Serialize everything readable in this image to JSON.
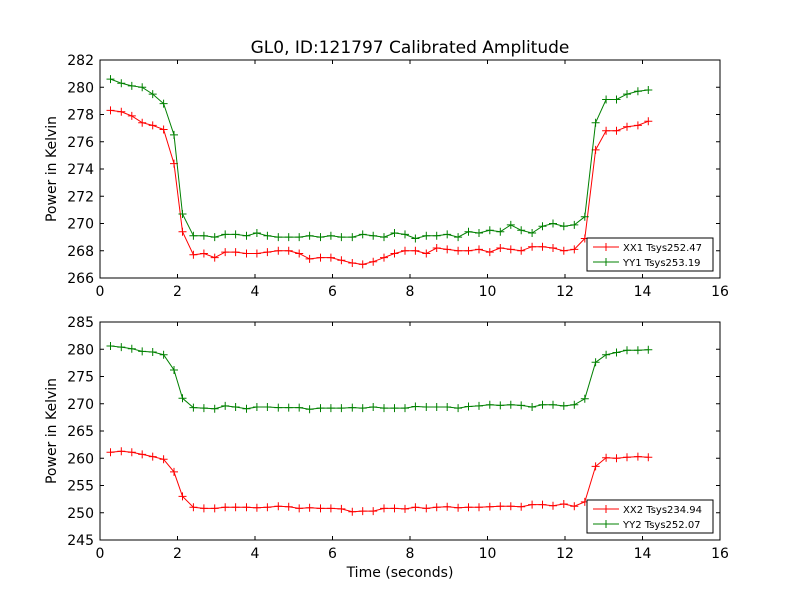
{
  "title": "GL0, ID:121797 Calibrated Amplitude",
  "colors": {
    "red": "#ff0000",
    "green": "#008000"
  },
  "chart_data": [
    {
      "type": "line",
      "panel": "top",
      "xlabel": "",
      "ylabel": "Power in Kelvin",
      "xlim": [
        0,
        16
      ],
      "ylim": [
        266,
        282
      ],
      "xticks": [
        0,
        2,
        4,
        6,
        8,
        10,
        12,
        14,
        16
      ],
      "yticks": [
        266,
        268,
        270,
        272,
        274,
        276,
        278,
        280,
        282
      ],
      "grid": false,
      "legend_position": "lower-right",
      "x": [
        0.27,
        0.55,
        0.82,
        1.09,
        1.36,
        1.64,
        1.91,
        2.13,
        2.41,
        2.68,
        2.96,
        3.23,
        3.5,
        3.78,
        4.05,
        4.32,
        4.6,
        4.87,
        5.14,
        5.41,
        5.69,
        5.96,
        6.23,
        6.51,
        6.78,
        7.05,
        7.33,
        7.6,
        7.87,
        8.14,
        8.42,
        8.69,
        8.96,
        9.24,
        9.51,
        9.78,
        10.06,
        10.33,
        10.6,
        10.87,
        11.15,
        11.42,
        11.69,
        11.97,
        12.24,
        12.51,
        12.79,
        13.06,
        13.33,
        13.6,
        13.88,
        14.15
      ],
      "series": [
        {
          "name": "XX1 Tsys252.47",
          "color": "#ff0000",
          "values": [
            278.3,
            278.2,
            277.9,
            277.4,
            277.2,
            276.9,
            274.4,
            269.4,
            267.7,
            267.8,
            267.5,
            267.9,
            267.9,
            267.8,
            267.8,
            267.9,
            268.0,
            268.0,
            267.8,
            267.4,
            267.5,
            267.5,
            267.3,
            267.1,
            267.0,
            267.2,
            267.5,
            267.8,
            268.0,
            268.0,
            267.8,
            268.2,
            268.1,
            268.0,
            268.0,
            268.1,
            267.9,
            268.2,
            268.1,
            268.0,
            268.3,
            268.3,
            268.2,
            268.0,
            268.1,
            268.9,
            275.4,
            276.8,
            276.8,
            277.1,
            277.2,
            277.5
          ]
        },
        {
          "name": "YY1 Tsys253.19",
          "color": "#008000",
          "values": [
            280.6,
            280.3,
            280.1,
            280.0,
            279.5,
            278.8,
            276.5,
            270.7,
            269.1,
            269.1,
            269.0,
            269.2,
            269.2,
            269.1,
            269.3,
            269.1,
            269.0,
            269.0,
            269.0,
            269.1,
            269.0,
            269.1,
            269.0,
            269.0,
            269.2,
            269.1,
            269.0,
            269.3,
            269.2,
            268.9,
            269.1,
            269.1,
            269.2,
            269.0,
            269.4,
            269.3,
            269.5,
            269.4,
            269.9,
            269.5,
            269.3,
            269.8,
            270.0,
            269.8,
            269.9,
            270.5,
            277.4,
            279.1,
            279.1,
            279.5,
            279.7,
            279.8
          ]
        }
      ]
    },
    {
      "type": "line",
      "panel": "bottom",
      "xlabel": "Time (seconds)",
      "ylabel": "Power in Kelvin",
      "xlim": [
        0,
        16
      ],
      "ylim": [
        245,
        285
      ],
      "xticks": [
        0,
        2,
        4,
        6,
        8,
        10,
        12,
        14,
        16
      ],
      "yticks": [
        245,
        250,
        255,
        260,
        265,
        270,
        275,
        280,
        285
      ],
      "grid": false,
      "legend_position": "lower-right",
      "x": [
        0.27,
        0.55,
        0.82,
        1.09,
        1.36,
        1.64,
        1.91,
        2.13,
        2.41,
        2.68,
        2.96,
        3.23,
        3.5,
        3.78,
        4.05,
        4.32,
        4.6,
        4.87,
        5.14,
        5.41,
        5.69,
        5.96,
        6.23,
        6.51,
        6.78,
        7.05,
        7.33,
        7.6,
        7.87,
        8.14,
        8.42,
        8.69,
        8.96,
        9.24,
        9.51,
        9.78,
        10.06,
        10.33,
        10.6,
        10.87,
        11.15,
        11.42,
        11.69,
        11.97,
        12.24,
        12.51,
        12.79,
        13.06,
        13.33,
        13.6,
        13.88,
        14.15
      ],
      "series": [
        {
          "name": "XX2 Tsys234.94",
          "color": "#ff0000",
          "values": [
            261.1,
            261.3,
            261.1,
            260.7,
            260.3,
            259.8,
            257.5,
            253.0,
            251.0,
            250.8,
            250.8,
            251.0,
            251.0,
            251.0,
            250.9,
            251.0,
            251.2,
            251.1,
            250.8,
            250.9,
            250.8,
            250.8,
            250.7,
            250.2,
            250.3,
            250.3,
            250.8,
            250.8,
            250.7,
            251.0,
            250.8,
            251.0,
            251.1,
            250.9,
            251.0,
            251.0,
            251.1,
            251.2,
            251.2,
            251.1,
            251.5,
            251.5,
            251.3,
            251.6,
            251.2,
            252.0,
            258.5,
            260.1,
            260.0,
            260.2,
            260.3,
            260.2
          ]
        },
        {
          "name": "YY2 Tsys252.07",
          "color": "#008000",
          "values": [
            280.6,
            280.4,
            280.1,
            279.6,
            279.5,
            279.0,
            276.2,
            271.0,
            269.3,
            269.2,
            269.1,
            269.6,
            269.4,
            269.1,
            269.4,
            269.4,
            269.3,
            269.3,
            269.3,
            269.0,
            269.2,
            269.2,
            269.2,
            269.3,
            269.2,
            269.4,
            269.2,
            269.2,
            269.2,
            269.5,
            269.4,
            269.4,
            269.4,
            269.2,
            269.5,
            269.6,
            269.8,
            269.7,
            269.8,
            269.7,
            269.4,
            269.8,
            269.8,
            269.6,
            269.8,
            270.9,
            277.6,
            279.0,
            279.4,
            279.8,
            279.8,
            279.9
          ]
        }
      ]
    }
  ]
}
